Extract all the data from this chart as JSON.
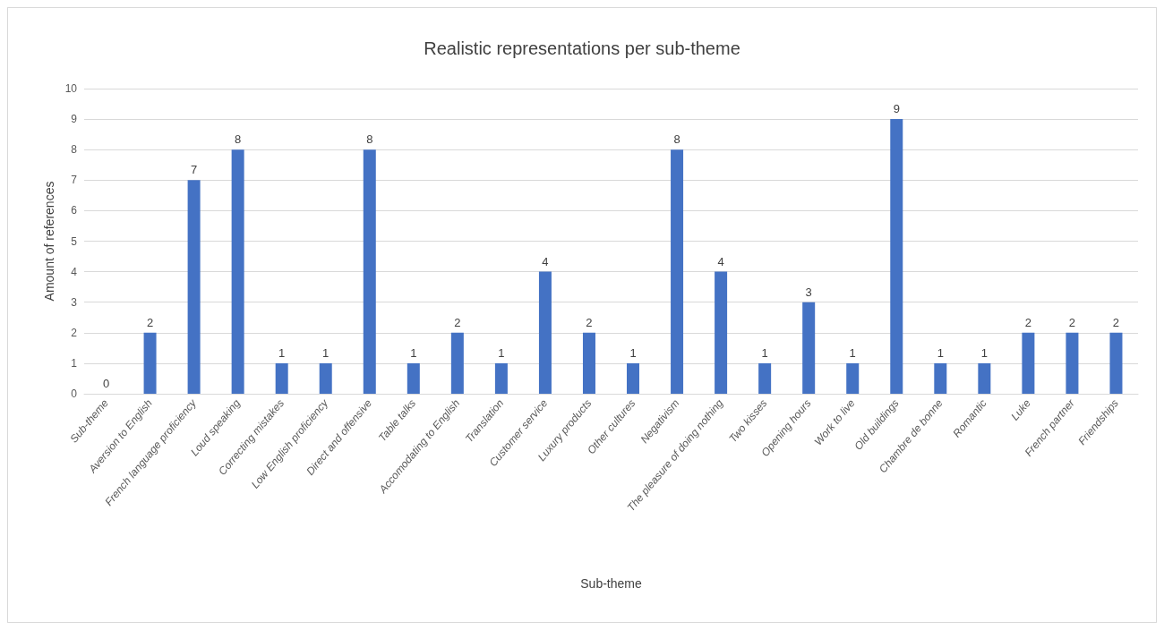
{
  "chart_data": {
    "type": "bar",
    "title": "Realistic representations per sub-theme",
    "xlabel": "Sub-theme",
    "ylabel": "Amount of references",
    "categories": [
      "Sub-theme",
      "Aversion to English",
      "French language proficiency",
      "Loud speaking",
      "Correcting mistakes",
      "Low English proficiency",
      "Direct and offensive",
      "Table talks",
      "Accomodating to English",
      "Translation",
      "Customer service",
      "Luxury products",
      "Other cultures",
      "Negativism",
      "The pleasure of doing nothing",
      "Two kisses",
      "Opening hours",
      "Work to live",
      "Old buildings",
      "Chambre de bonne",
      "Romantic",
      "Luke",
      "French partner",
      "Friendships"
    ],
    "values": [
      0,
      2,
      7,
      8,
      1,
      1,
      8,
      1,
      2,
      1,
      4,
      2,
      1,
      8,
      4,
      1,
      3,
      1,
      9,
      1,
      1,
      2,
      2,
      2
    ],
    "color": "#4472c4",
    "ylim": [
      0,
      10
    ],
    "yticks": [
      0,
      1,
      2,
      3,
      4,
      5,
      6,
      7,
      8,
      9,
      10
    ],
    "grid": "y",
    "data_labels": true
  }
}
